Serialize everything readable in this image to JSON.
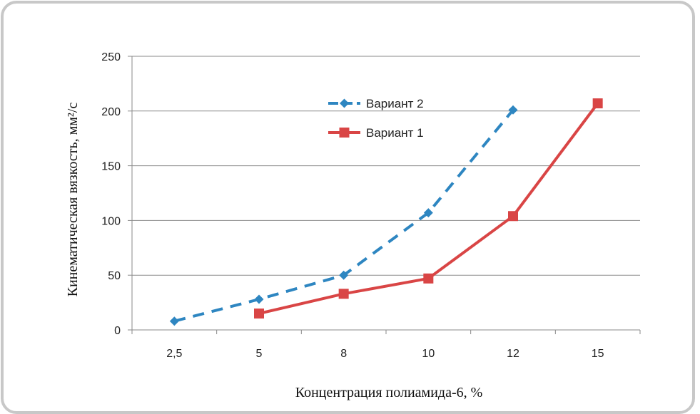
{
  "chart_data": {
    "type": "line",
    "categories": [
      "2,5",
      "5",
      "8",
      "10",
      "12",
      "15"
    ],
    "ylabel": "Кинематическая вязкость, мм²/с",
    "xlabel": "Концентрация полиамида-6, %",
    "ylim": [
      0,
      250
    ],
    "yticks": [
      0,
      50,
      100,
      150,
      200,
      250
    ],
    "grid": "horizontal",
    "legend_position": "inside-top",
    "series": [
      {
        "name": "Вариант 2",
        "color": "#2e86c1",
        "line_style": "dashed",
        "marker": "diamond",
        "values": [
          8,
          28,
          50,
          107,
          201,
          null
        ]
      },
      {
        "name": "Вариант 1",
        "color": "#d94545",
        "line_style": "solid",
        "marker": "square",
        "values": [
          null,
          15,
          33,
          47,
          104,
          207
        ]
      }
    ]
  }
}
